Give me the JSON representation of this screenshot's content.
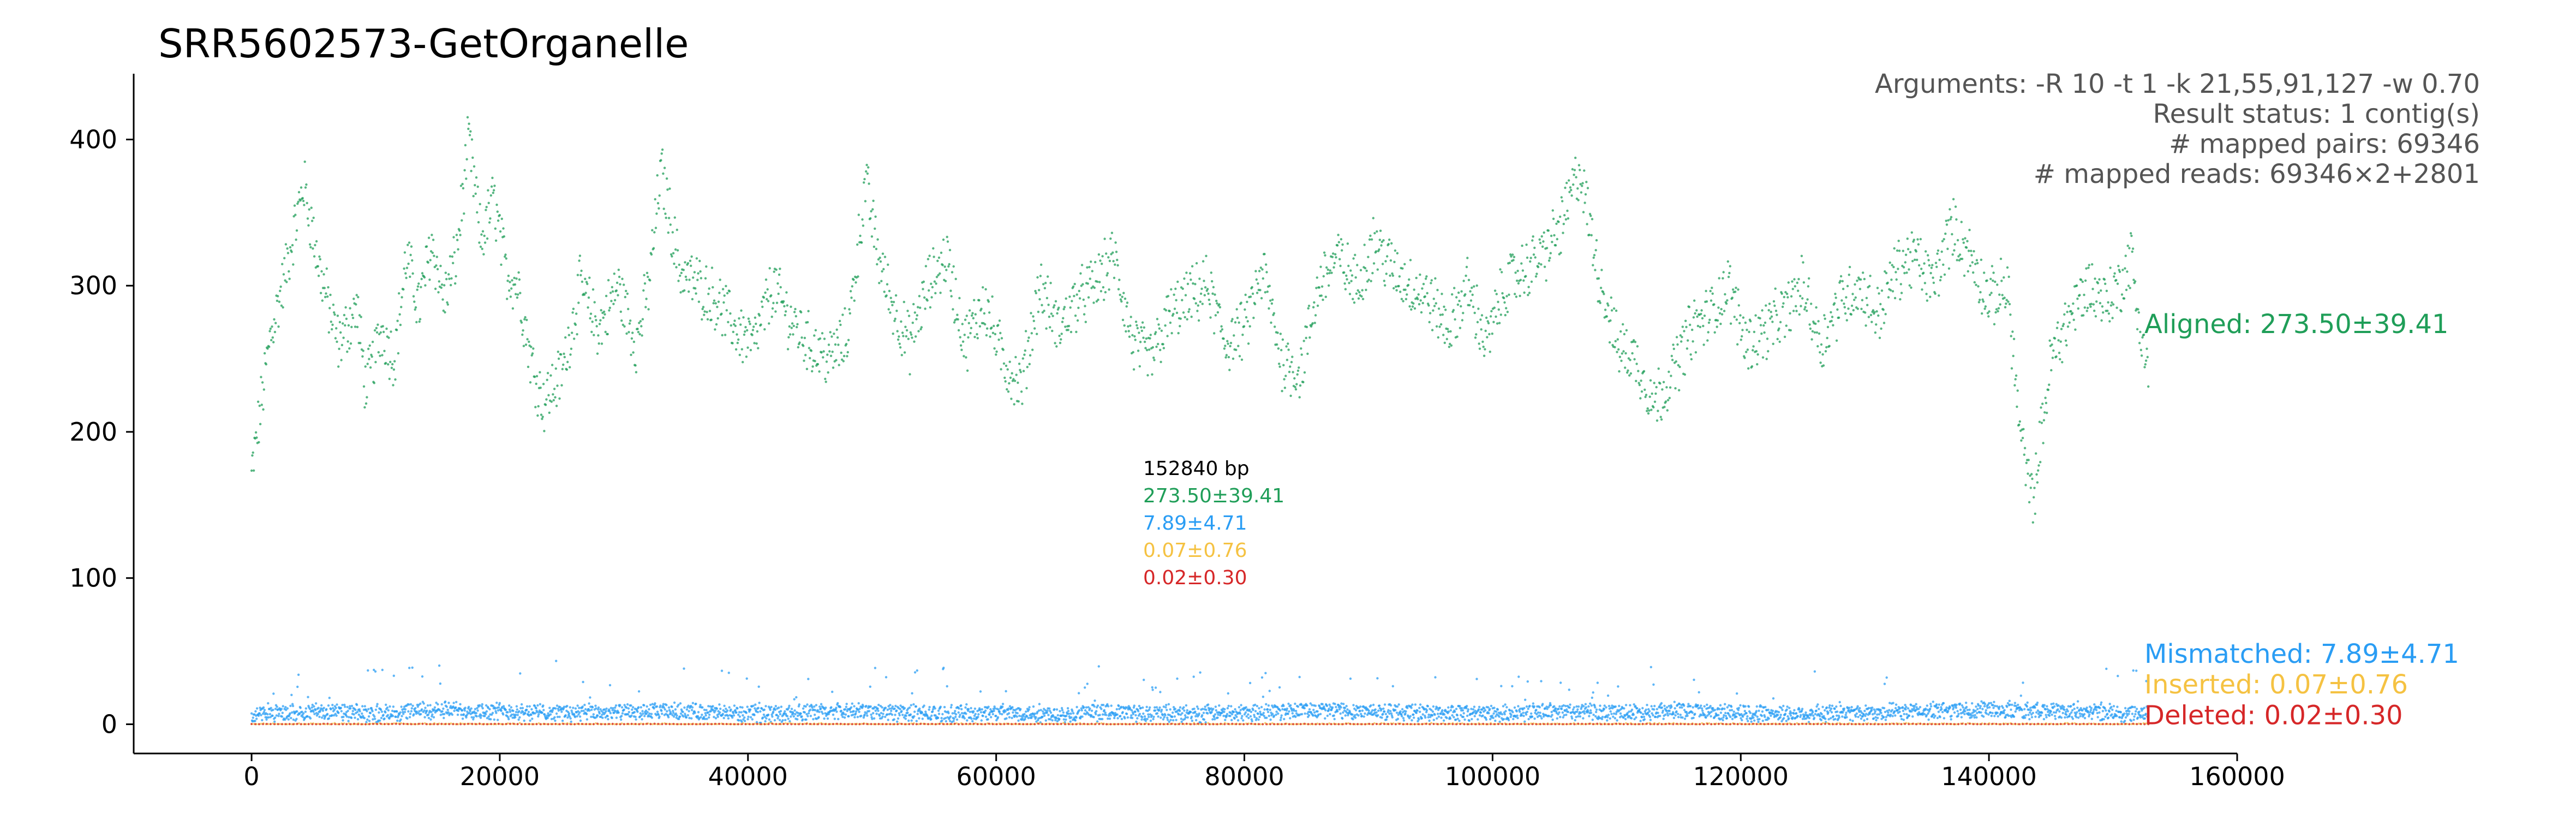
{
  "colors": {
    "aligned": "#1f9e58",
    "mismatched": "#2a9df4",
    "inserted": "#f5c242",
    "deleted": "#d62728",
    "text": "#000000",
    "annotation_gray": "#555555"
  },
  "chart_data": {
    "type": "scatter",
    "title": "SRR5602573-GetOrganelle",
    "xlabel": "",
    "ylabel": "",
    "xlim": [
      -9500,
      160000
    ],
    "ylim": [
      -20,
      445
    ],
    "x_ticks": [
      0,
      20000,
      40000,
      60000,
      80000,
      100000,
      120000,
      140000,
      160000
    ],
    "x_tick_labels": [
      "0",
      "20000",
      "40000",
      "60000",
      "80000",
      "100000",
      "120000",
      "140000",
      "160000"
    ],
    "y_ticks": [
      0,
      100,
      200,
      300,
      400
    ],
    "y_tick_labels": [
      "0",
      "100",
      "200",
      "300",
      "400"
    ],
    "grid": false,
    "genome_length": 152840,
    "arguments_lines": [
      "Arguments: -R 10 -t 1 -k 21,55,91,127 -w 0.70",
      "Result status: 1 contig(s)",
      "# mapped pairs: 69346",
      "# mapped reads: 69346×2+2801"
    ],
    "center_stats": {
      "length_label": "152840 bp",
      "aligned": "273.50±39.41",
      "mismatched": "7.89±4.71",
      "inserted": "0.07±0.76",
      "deleted": "0.02±0.30"
    },
    "series": [
      {
        "name": "Aligned",
        "label": "Aligned: 273.50±39.41",
        "color": "#1f9e58",
        "x": [
          0,
          1500,
          2500,
          3500,
          4200,
          5500,
          7000,
          8500,
          9200,
          10500,
          11500,
          12500,
          13500,
          14500,
          15500,
          16500,
          17500,
          18500,
          19500,
          20500,
          21500,
          22500,
          23500,
          25000,
          26500,
          28000,
          29500,
          31000,
          32000,
          33000,
          34500,
          36000,
          37500,
          39000,
          40500,
          42000,
          43500,
          45000,
          46500,
          48000,
          49500,
          50500,
          51500,
          53000,
          54500,
          56000,
          57500,
          59000,
          60500,
          62000,
          63500,
          65000,
          66500,
          68000,
          69500,
          71000,
          72500,
          74000,
          75500,
          77000,
          78500,
          80000,
          81500,
          83000,
          84500,
          86000,
          87500,
          89000,
          90500,
          92000,
          93500,
          95000,
          96500,
          98000,
          99500,
          101000,
          102500,
          104000,
          105500,
          107000,
          108500,
          110000,
          111500,
          113000,
          114500,
          116000,
          117500,
          119000,
          120500,
          122000,
          123500,
          125000,
          126500,
          128000,
          129500,
          131000,
          132500,
          134000,
          135500,
          137000,
          138500,
          140000,
          141500,
          142500,
          143500,
          145000,
          146500,
          148000,
          149500,
          150500,
          151500,
          152000,
          152840
        ],
        "y": [
          170,
          265,
          300,
          340,
          370,
          310,
          260,
          285,
          230,
          270,
          250,
          320,
          285,
          330,
          290,
          320,
          400,
          330,
          360,
          310,
          300,
          250,
          220,
          240,
          300,
          270,
          300,
          260,
          300,
          380,
          310,
          300,
          290,
          270,
          260,
          300,
          275,
          260,
          250,
          265,
          370,
          320,
          290,
          260,
          300,
          320,
          260,
          290,
          250,
          230,
          300,
          270,
          290,
          300,
          320,
          260,
          250,
          280,
          290,
          300,
          260,
          270,
          310,
          250,
          240,
          300,
          320,
          300,
          330,
          310,
          300,
          290,
          270,
          300,
          260,
          300,
          310,
          320,
          340,
          380,
          310,
          260,
          250,
          220,
          240,
          270,
          280,
          300,
          260,
          270,
          280,
          300,
          260,
          290,
          300,
          280,
          310,
          320,
          300,
          340,
          320,
          290,
          300,
          200,
          150,
          250,
          280,
          300,
          290,
          300,
          320,
          280,
          240
        ],
        "style": "points"
      },
      {
        "name": "Mismatched",
        "label": "Mismatched: 7.89±4.71",
        "color": "#2a9df4",
        "x": [
          0,
          5000,
          10000,
          15000,
          20000,
          25000,
          30000,
          35000,
          40000,
          45000,
          50000,
          55000,
          60000,
          65000,
          70000,
          75000,
          80000,
          85000,
          90000,
          95000,
          100000,
          105000,
          110000,
          115000,
          120000,
          125000,
          130000,
          135000,
          140000,
          145000,
          150000,
          152840
        ],
        "y": [
          6,
          9,
          7,
          10,
          9,
          8,
          8,
          9,
          7,
          8,
          9,
          7,
          8,
          7,
          8,
          7,
          8,
          10,
          9,
          8,
          7,
          9,
          8,
          9,
          8,
          7,
          8,
          9,
          10,
          9,
          8,
          6
        ],
        "style": "points"
      },
      {
        "name": "Inserted",
        "label": "Inserted: 0.07±0.76",
        "color": "#f5c242",
        "x": [
          0,
          20000,
          40000,
          60000,
          80000,
          100000,
          120000,
          140000,
          152840
        ],
        "y": [
          0.07,
          0.07,
          0.07,
          0.07,
          0.07,
          0.07,
          0.07,
          0.07,
          0.07
        ],
        "style": "points"
      },
      {
        "name": "Deleted",
        "label": "Deleted: 0.02±0.30",
        "color": "#d62728",
        "x": [
          0,
          20000,
          40000,
          60000,
          80000,
          100000,
          120000,
          140000,
          152840
        ],
        "y": [
          0.02,
          0.02,
          0.02,
          0.02,
          0.02,
          0.02,
          0.02,
          0.02,
          0.02
        ],
        "style": "points"
      }
    ]
  }
}
